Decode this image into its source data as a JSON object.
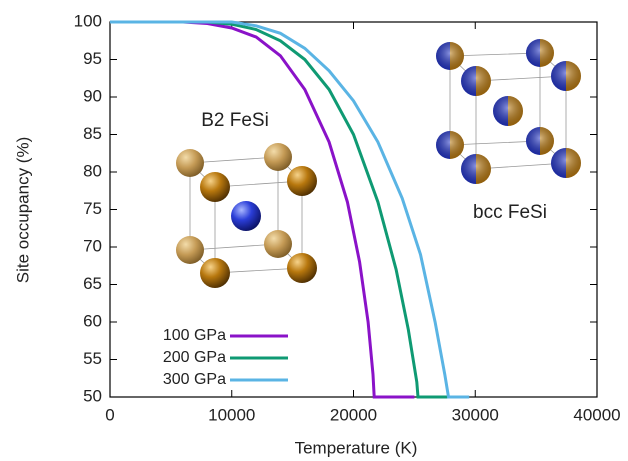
{
  "chart_data": {
    "type": "line",
    "xlabel": "Temperature (K)",
    "ylabel": "Site occupancy (%)",
    "xlim": [
      0,
      40000
    ],
    "xticks": [
      0,
      10000,
      20000,
      30000,
      40000
    ],
    "ylim": [
      50,
      100
    ],
    "yticks": [
      50,
      55,
      60,
      65,
      70,
      75,
      80,
      85,
      90,
      95,
      100
    ],
    "annotations": [
      "B2 FeSi",
      "bcc FeSi"
    ],
    "series": [
      {
        "name": "100 GPa",
        "color": "#8a12c8",
        "x": [
          0,
          6000,
          8000,
          10000,
          12000,
          14000,
          16000,
          18000,
          19500,
          20500,
          21200,
          21600,
          21700,
          25000
        ],
        "values": [
          100,
          100,
          99.8,
          99.2,
          98,
          95.5,
          91,
          84,
          76,
          68,
          60,
          53,
          50,
          50
        ]
      },
      {
        "name": "200 GPa",
        "color": "#0f9a73",
        "x": [
          0,
          8000,
          10000,
          12000,
          14000,
          16000,
          18000,
          20000,
          22000,
          23500,
          24500,
          25200,
          25300,
          28000
        ],
        "values": [
          100,
          100,
          99.7,
          99,
          97.5,
          95,
          91,
          85,
          76,
          67,
          59,
          52,
          50,
          50
        ]
      },
      {
        "name": "300 GPa",
        "color": "#5ab4e4",
        "x": [
          0,
          10000,
          12000,
          14000,
          16000,
          18000,
          20000,
          22000,
          24000,
          25500,
          26700,
          27500,
          27800,
          29500
        ],
        "values": [
          100,
          100,
          99.5,
          98.5,
          96.5,
          93.5,
          89.5,
          84,
          76.5,
          69,
          60,
          53,
          50,
          50
        ]
      }
    ]
  }
}
